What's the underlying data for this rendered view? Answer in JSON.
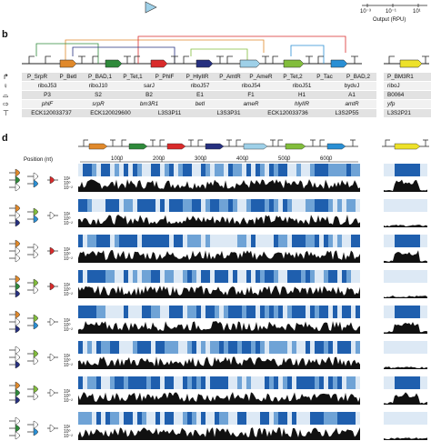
{
  "top_axis": {
    "tick_labels": [
      "10⁻³",
      "10⁻¹",
      "10¹"
    ],
    "xlabel": "Output (RPU)"
  },
  "panel_b": {
    "letter": "b",
    "promoters": [
      "P_SrpR",
      "P_BetI",
      "P_BAD,1",
      "P_Tet,1",
      "P_PhlF",
      "P_HlyIIR",
      "P_AmtR",
      "P_AmeR",
      "P_Tet,2",
      "P_Tac",
      "P_BAD,2"
    ],
    "ribozymes": [
      "riboJ53",
      "riboJ10",
      "sarJ",
      "riboJ57",
      "riboJ54",
      "riboJ51",
      "bydvJ"
    ],
    "rbs": [
      "P3",
      "S2",
      "B2",
      "E1",
      "F1",
      "H1",
      "A1"
    ],
    "genes": [
      "phlF",
      "srpR",
      "bm3R1",
      "betI",
      "ameR",
      "hlyIIR",
      "amtR"
    ],
    "terminators": [
      "ECK120033737",
      "ECK120029600",
      "L3S3P11",
      "L3S3P31",
      "ECK120033736",
      "L3S2P55"
    ],
    "output": {
      "promoter": "P_BM3R1",
      "ribozyme": "riboJ",
      "rbs": "B0064",
      "gene": "yfp",
      "terminator": "L3S2P21"
    }
  },
  "panel_d": {
    "letter": "d",
    "position_label": "Position (nt)",
    "position_ticks": [
      "1000",
      "2000",
      "3000",
      "4000",
      "5000",
      "6000"
    ],
    "y_ticks": [
      "10²",
      "10⁰",
      "10⁻²"
    ],
    "num_tracks": 8
  },
  "colors": {
    "phlF": "#e0892b",
    "srpR": "#2f8a3b",
    "bm3R1": "#d92b2b",
    "betI": "#26307f",
    "ameR": "#9ed0e8",
    "hlyIIR": "#82bd3c",
    "amtR": "#2a8fd4",
    "yfp": "#ede12a",
    "heat_dark": "#1f5fae",
    "heat_light": "#dde9f5"
  }
}
